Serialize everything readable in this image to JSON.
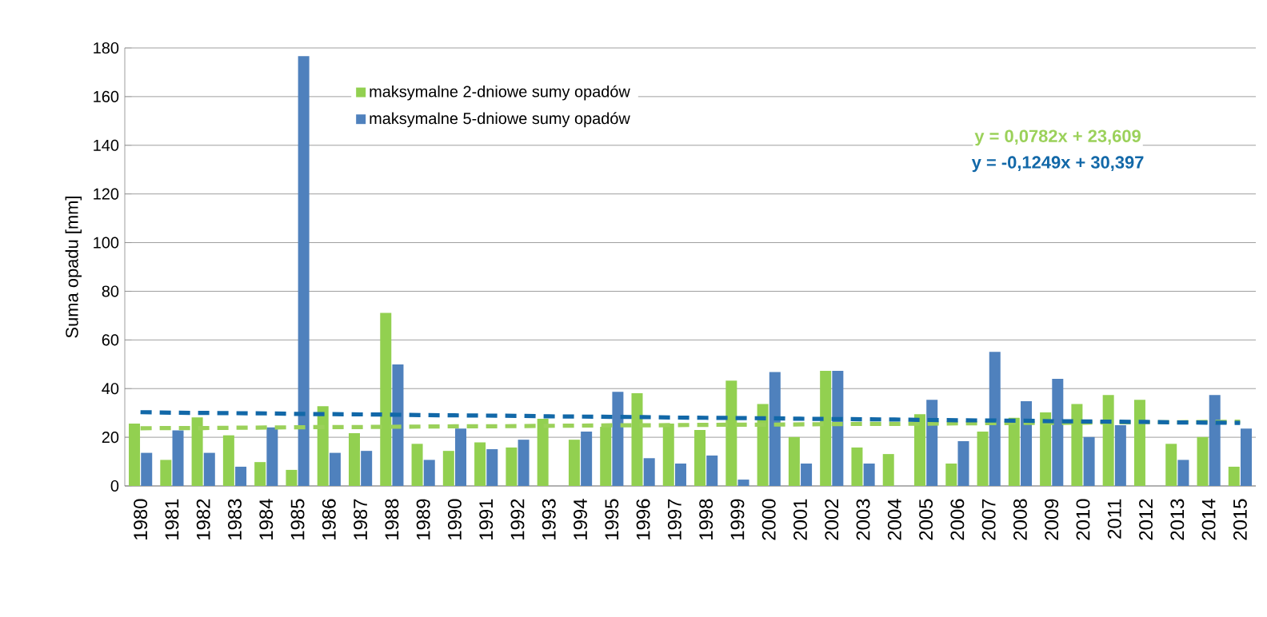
{
  "chart_data": {
    "type": "bar",
    "ylabel": "Suma opadu [mm]",
    "categories": [
      "1980",
      "1981",
      "1982",
      "1983",
      "1984",
      "1985",
      "1986",
      "1987",
      "1988",
      "1989",
      "1990",
      "1991",
      "1992",
      "1993",
      "1994",
      "1995",
      "1996",
      "1997",
      "1998",
      "1999",
      "2000",
      "2001",
      "2002",
      "2003",
      "2004",
      "2005",
      "2006",
      "2007",
      "2008",
      "2009",
      "2010",
      "2011",
      "2012",
      "2013",
      "2014",
      "2015"
    ],
    "series": [
      {
        "name": "maksymalne 2-dniowe sumy opadów",
        "color": "#92d050",
        "values": [
          25.6,
          10.7,
          28.2,
          20.8,
          9.8,
          6.6,
          32.8,
          21.7,
          71.1,
          17.3,
          14.4,
          17.9,
          15.8,
          27.6,
          19,
          24.3,
          38.1,
          25.6,
          23,
          43.3,
          33.7,
          20.1,
          47.3,
          15.8,
          13.1,
          29.5,
          9.2,
          22.3,
          28,
          30.2,
          33.7,
          37.4,
          35.4,
          17.3,
          20.1,
          7.9
        ]
      },
      {
        "name": "maksymalne 5-dniowe sumy opadów",
        "color": "#4f81bd",
        "values": [
          13.6,
          22.8,
          13.6,
          7.9,
          24.1,
          176.6,
          13.6,
          14.4,
          49.9,
          10.7,
          23.6,
          15.1,
          19,
          0,
          22.3,
          38.7,
          11.4,
          9.2,
          12.5,
          2.6,
          46.8,
          9.2,
          47.3,
          9.2,
          0,
          35.4,
          18.4,
          55.1,
          34.8,
          44,
          20.1,
          25,
          0,
          10.7,
          37.4,
          23.6
        ]
      },
      {
        "type": "line",
        "color": "#9bd15a",
        "line_style": "dashed",
        "values": [
          23.7,
          23.8,
          23.8,
          23.9,
          24.0,
          24.1,
          24.2,
          24.2,
          24.3,
          24.4,
          24.5,
          24.5,
          24.6,
          24.7,
          24.8,
          24.9,
          24.9,
          25.0,
          25.1,
          25.2,
          25.2,
          25.3,
          25.4,
          25.5,
          25.5,
          25.6,
          25.7,
          25.8,
          25.9,
          25.9,
          26.0,
          26.1,
          26.2,
          26.2,
          26.3,
          26.4
        ]
      },
      {
        "type": "line",
        "color": "#1268a8",
        "line_style": "dashed",
        "values": [
          30.3,
          30.1,
          30.0,
          29.9,
          29.8,
          29.6,
          29.5,
          29.4,
          29.3,
          29.1,
          29.0,
          28.9,
          28.8,
          28.6,
          28.5,
          28.4,
          28.3,
          28.1,
          28.0,
          27.9,
          27.8,
          27.6,
          27.5,
          27.4,
          27.3,
          27.1,
          27.0,
          26.9,
          26.8,
          26.6,
          26.5,
          26.4,
          26.3,
          26.1,
          26.0,
          25.9
        ]
      }
    ],
    "annotations": [
      "y = 0,0782x  + 23,609",
      "y = -0,1249x  + 30,397"
    ],
    "ylim": [
      0,
      180
    ],
    "yticks": [
      0,
      20,
      40,
      60,
      80,
      100,
      120,
      140,
      160,
      180
    ],
    "grid": "y",
    "legend": "top left"
  }
}
